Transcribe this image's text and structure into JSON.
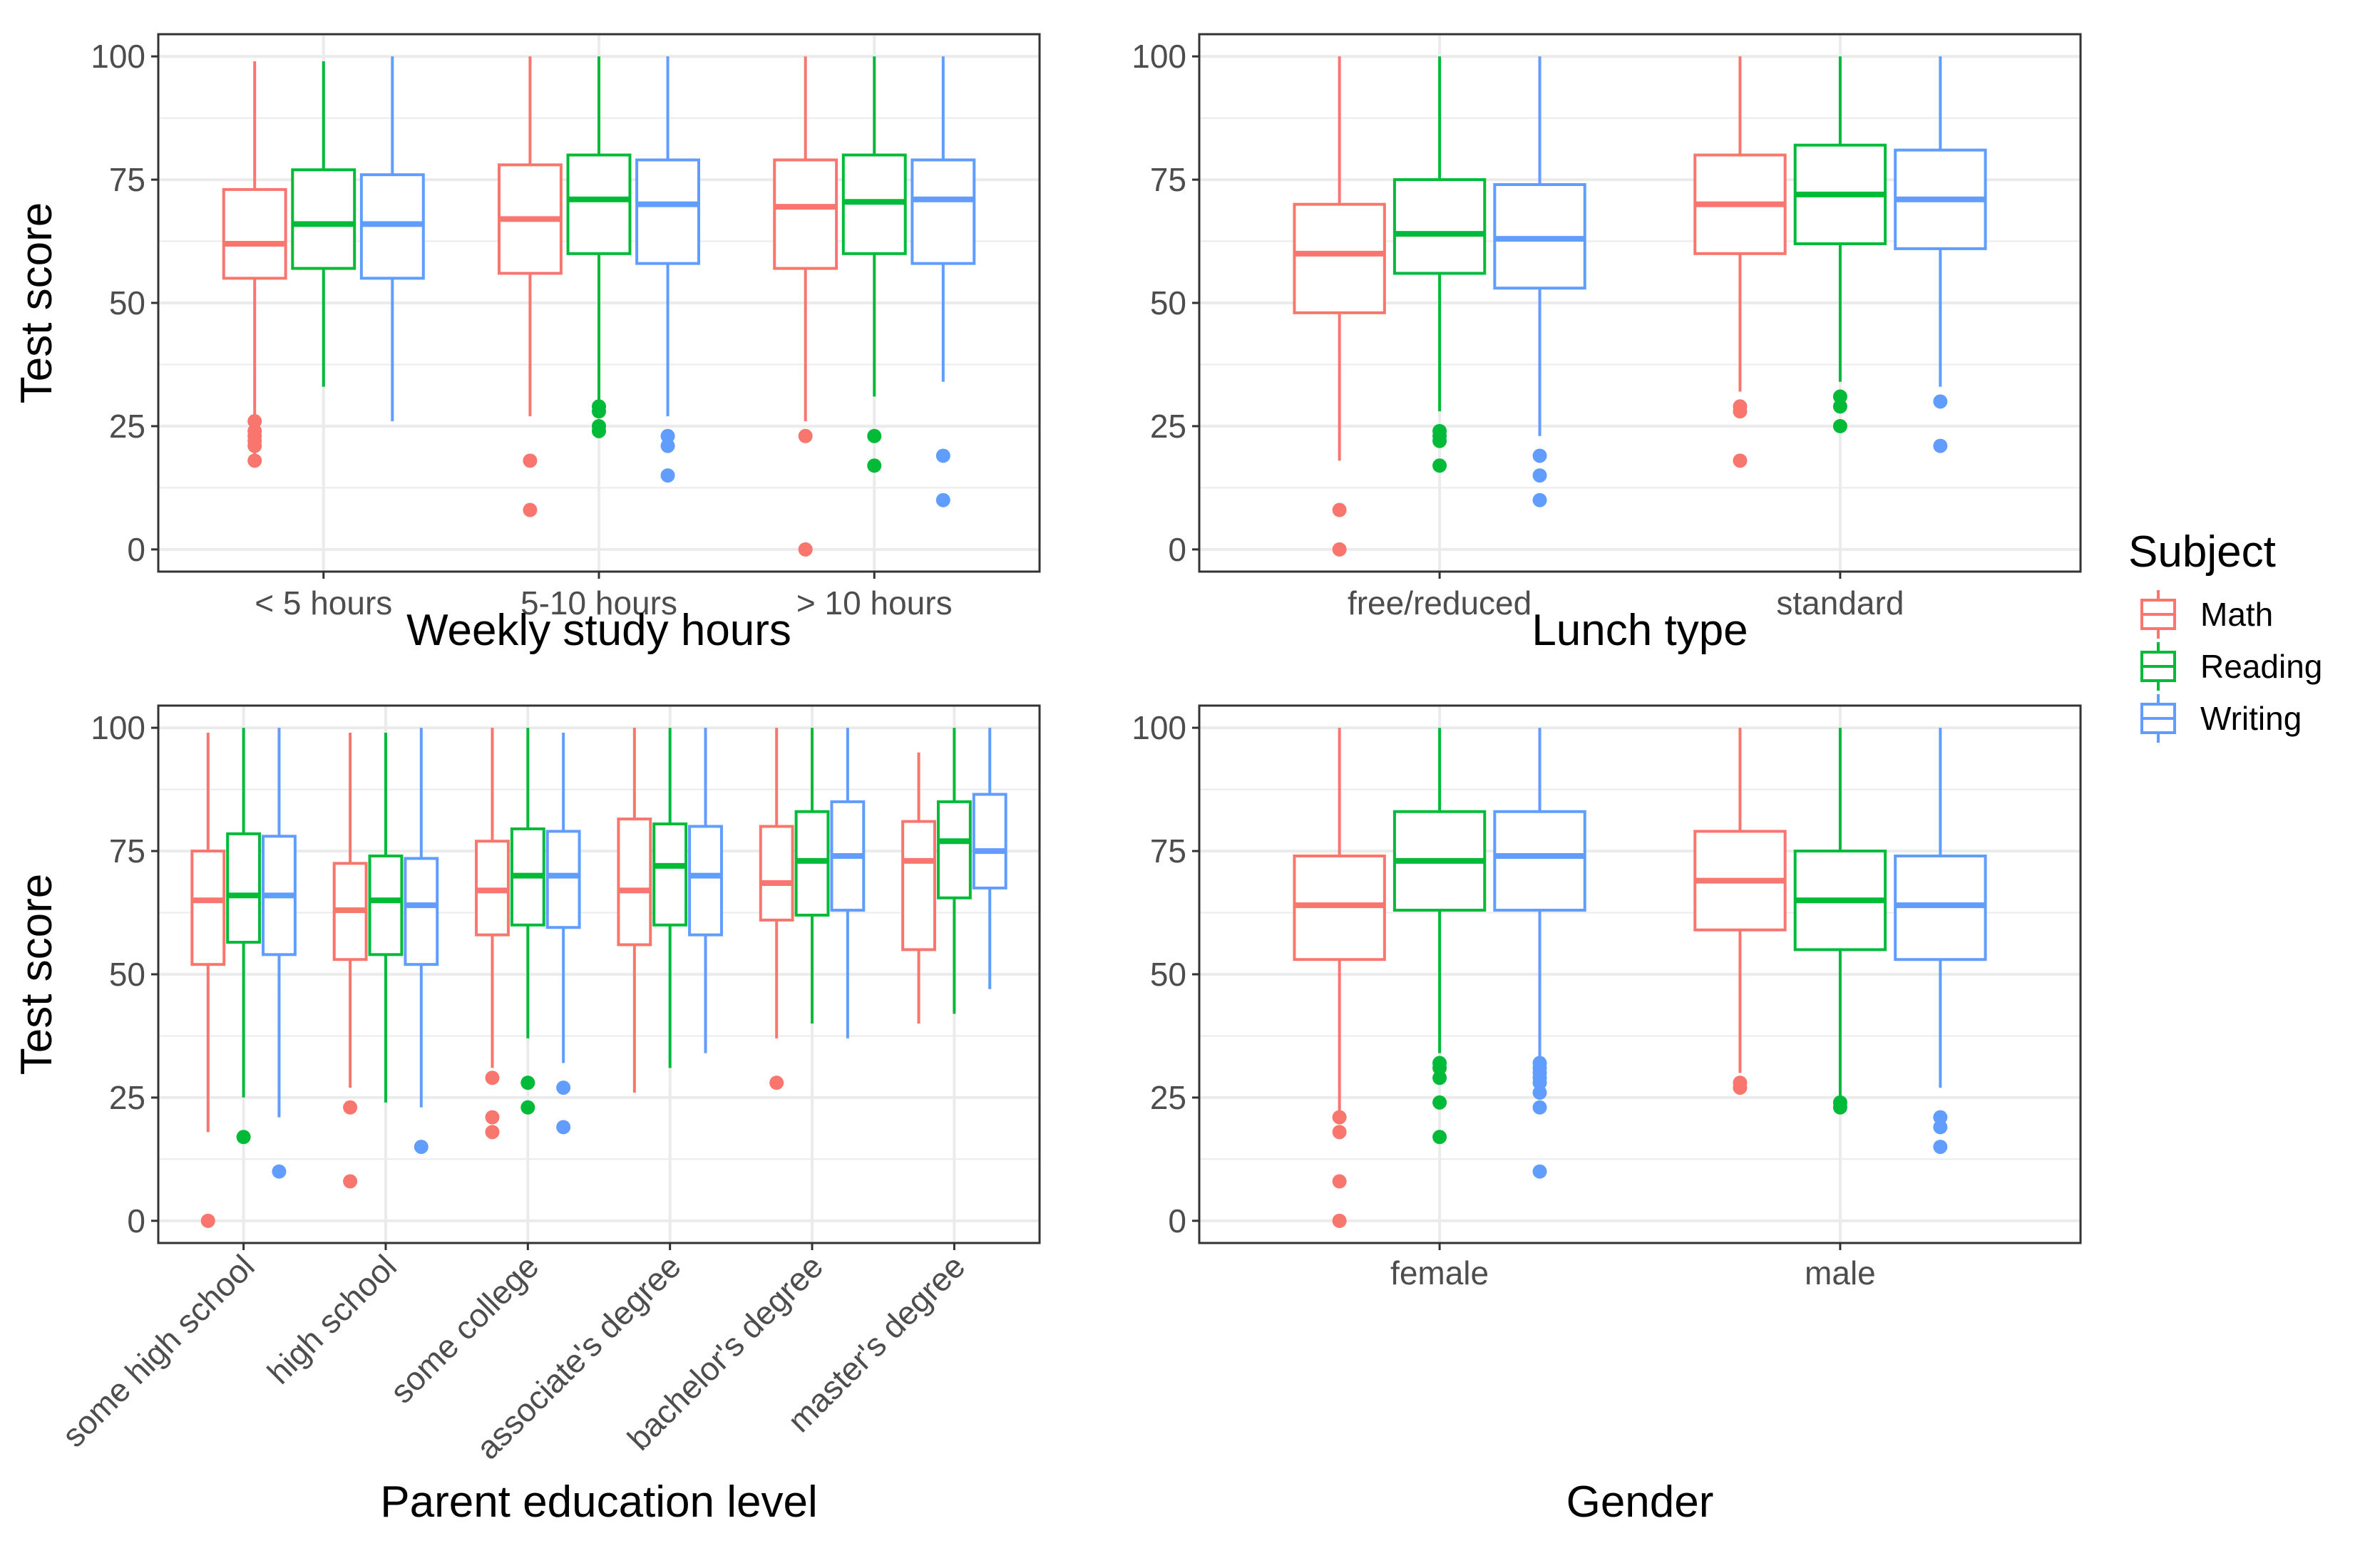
{
  "legend": {
    "title": "Subject",
    "items": [
      {
        "label": "Math",
        "color": "#F8766D"
      },
      {
        "label": "Reading",
        "color": "#00BA38"
      },
      {
        "label": "Writing",
        "color": "#619CFF"
      }
    ]
  },
  "chart_data": [
    {
      "type": "box",
      "xlabel": "Weekly study hours",
      "ylabel": "Test score",
      "ylim": [
        -4.5,
        104.5
      ],
      "yticks": [
        0,
        25,
        50,
        75,
        100
      ],
      "categories": [
        "< 5 hours",
        "5-10 hours",
        "> 10 hours"
      ],
      "series": [
        {
          "name": "Math",
          "boxes": [
            {
              "whislo": 18,
              "q1": 55,
              "med": 62,
              "q3": 73,
              "whishi": 99,
              "outliers": [
                26,
                24,
                23,
                22,
                21,
                18
              ]
            },
            {
              "whislo": 27,
              "q1": 56,
              "med": 67,
              "q3": 78,
              "whishi": 100,
              "outliers": [
                18,
                8
              ]
            },
            {
              "whislo": 26,
              "q1": 57,
              "med": 69.5,
              "q3": 79,
              "whishi": 100,
              "outliers": [
                23,
                0
              ]
            }
          ]
        },
        {
          "name": "Reading",
          "boxes": [
            {
              "whislo": 33,
              "q1": 57,
              "med": 66,
              "q3": 77,
              "whishi": 99,
              "outliers": []
            },
            {
              "whislo": 30,
              "q1": 60,
              "med": 71,
              "q3": 80,
              "whishi": 100,
              "outliers": [
                29,
                28,
                25,
                24
              ]
            },
            {
              "whislo": 31,
              "q1": 60,
              "med": 70.5,
              "q3": 80,
              "whishi": 100,
              "outliers": [
                23,
                17
              ]
            }
          ]
        },
        {
          "name": "Writing",
          "boxes": [
            {
              "whislo": 26,
              "q1": 55,
              "med": 66,
              "q3": 76,
              "whishi": 100,
              "outliers": []
            },
            {
              "whislo": 27,
              "q1": 58,
              "med": 70,
              "q3": 79,
              "whishi": 100,
              "outliers": [
                23,
                21,
                15
              ]
            },
            {
              "whislo": 34,
              "q1": 58,
              "med": 71,
              "q3": 79,
              "whishi": 100,
              "outliers": [
                19,
                10
              ]
            }
          ]
        }
      ]
    },
    {
      "type": "box",
      "xlabel": "Lunch type",
      "ylabel": "",
      "ylim": [
        -4.5,
        104.5
      ],
      "yticks": [
        0,
        25,
        50,
        75,
        100
      ],
      "categories": [
        "free/reduced",
        "standard"
      ],
      "series": [
        {
          "name": "Math",
          "boxes": [
            {
              "whislo": 18,
              "q1": 48,
              "med": 60,
              "q3": 70,
              "whishi": 100,
              "outliers": [
                8,
                0
              ]
            },
            {
              "whislo": 32,
              "q1": 60,
              "med": 70,
              "q3": 80,
              "whishi": 100,
              "outliers": [
                29,
                28,
                18
              ]
            }
          ]
        },
        {
          "name": "Reading",
          "boxes": [
            {
              "whislo": 28,
              "q1": 56,
              "med": 64,
              "q3": 75,
              "whishi": 100,
              "outliers": [
                24,
                23,
                22,
                17
              ]
            },
            {
              "whislo": 34,
              "q1": 62,
              "med": 72,
              "q3": 82,
              "whishi": 100,
              "outliers": [
                31,
                29,
                25
              ]
            }
          ]
        },
        {
          "name": "Writing",
          "boxes": [
            {
              "whislo": 23,
              "q1": 53,
              "med": 63,
              "q3": 74,
              "whishi": 100,
              "outliers": [
                19,
                15,
                10
              ]
            },
            {
              "whislo": 33,
              "q1": 61,
              "med": 71,
              "q3": 81,
              "whishi": 100,
              "outliers": [
                30,
                21
              ]
            }
          ]
        }
      ]
    },
    {
      "type": "box",
      "xlabel": "Parent education level",
      "ylabel": "Test score",
      "ylim": [
        -4.5,
        104.5
      ],
      "yticks": [
        0,
        25,
        50,
        75,
        100
      ],
      "categories": [
        "some high school",
        "high school",
        "some college",
        "associate's degree",
        "bachelor's degree",
        "master's degree"
      ],
      "series": [
        {
          "name": "Math",
          "boxes": [
            {
              "whislo": 18,
              "q1": 52,
              "med": 65,
              "q3": 75,
              "whishi": 99,
              "outliers": [
                0
              ]
            },
            {
              "whislo": 27,
              "q1": 53,
              "med": 63,
              "q3": 72.5,
              "whishi": 99,
              "outliers": [
                23,
                8
              ]
            },
            {
              "whislo": 31,
              "q1": 58,
              "med": 67,
              "q3": 77,
              "whishi": 100,
              "outliers": [
                29,
                21,
                18
              ]
            },
            {
              "whislo": 26,
              "q1": 56,
              "med": 67,
              "q3": 81.5,
              "whishi": 100,
              "outliers": []
            },
            {
              "whislo": 37,
              "q1": 61,
              "med": 68.5,
              "q3": 80,
              "whishi": 100,
              "outliers": [
                28
              ]
            },
            {
              "whislo": 40,
              "q1": 55,
              "med": 73,
              "q3": 81,
              "whishi": 95,
              "outliers": []
            }
          ]
        },
        {
          "name": "Reading",
          "boxes": [
            {
              "whislo": 25,
              "q1": 56.5,
              "med": 66,
              "q3": 78.5,
              "whishi": 100,
              "outliers": [
                17
              ]
            },
            {
              "whislo": 24,
              "q1": 54,
              "med": 65,
              "q3": 74,
              "whishi": 99,
              "outliers": []
            },
            {
              "whislo": 37,
              "q1": 60,
              "med": 70,
              "q3": 79.5,
              "whishi": 100,
              "outliers": [
                28,
                23
              ]
            },
            {
              "whislo": 31,
              "q1": 60,
              "med": 72,
              "q3": 80.5,
              "whishi": 100,
              "outliers": []
            },
            {
              "whislo": 40,
              "q1": 62,
              "med": 73,
              "q3": 83,
              "whishi": 100,
              "outliers": []
            },
            {
              "whislo": 42,
              "q1": 65.5,
              "med": 77,
              "q3": 85,
              "whishi": 100,
              "outliers": []
            }
          ]
        },
        {
          "name": "Writing",
          "boxes": [
            {
              "whislo": 21,
              "q1": 54,
              "med": 66,
              "q3": 78,
              "whishi": 100,
              "outliers": [
                10
              ]
            },
            {
              "whislo": 23,
              "q1": 52,
              "med": 64,
              "q3": 73.5,
              "whishi": 100,
              "outliers": [
                15
              ]
            },
            {
              "whislo": 32,
              "q1": 59.5,
              "med": 70,
              "q3": 79,
              "whishi": 99,
              "outliers": [
                27,
                19
              ]
            },
            {
              "whislo": 34,
              "q1": 58,
              "med": 70,
              "q3": 80,
              "whishi": 100,
              "outliers": []
            },
            {
              "whislo": 37,
              "q1": 63,
              "med": 74,
              "q3": 85,
              "whishi": 100,
              "outliers": []
            },
            {
              "whislo": 47,
              "q1": 67.5,
              "med": 75,
              "q3": 86.5,
              "whishi": 100,
              "outliers": []
            }
          ]
        }
      ]
    },
    {
      "type": "box",
      "xlabel": "Gender",
      "ylabel": "",
      "ylim": [
        -4.5,
        104.5
      ],
      "yticks": [
        0,
        25,
        50,
        75,
        100
      ],
      "categories": [
        "female",
        "male"
      ],
      "series": [
        {
          "name": "Math",
          "boxes": [
            {
              "whislo": 22,
              "q1": 53,
              "med": 64,
              "q3": 74,
              "whishi": 100,
              "outliers": [
                21,
                18,
                8,
                0
              ]
            },
            {
              "whislo": 30,
              "q1": 59,
              "med": 69,
              "q3": 79,
              "whishi": 100,
              "outliers": [
                28,
                27
              ]
            }
          ]
        },
        {
          "name": "Reading",
          "boxes": [
            {
              "whislo": 34,
              "q1": 63,
              "med": 73,
              "q3": 83,
              "whishi": 100,
              "outliers": [
                32,
                31,
                29,
                24,
                17
              ]
            },
            {
              "whislo": 25,
              "q1": 55,
              "med": 65,
              "q3": 75,
              "whishi": 100,
              "outliers": [
                24,
                23
              ]
            }
          ]
        },
        {
          "name": "Writing",
          "boxes": [
            {
              "whislo": 33,
              "q1": 63,
              "med": 74,
              "q3": 83,
              "whishi": 100,
              "outliers": [
                32,
                31,
                30,
                29,
                28,
                26,
                23,
                10
              ]
            },
            {
              "whislo": 27,
              "q1": 53,
              "med": 64,
              "q3": 74,
              "whishi": 100,
              "outliers": [
                21,
                19,
                15
              ]
            }
          ]
        }
      ]
    }
  ]
}
